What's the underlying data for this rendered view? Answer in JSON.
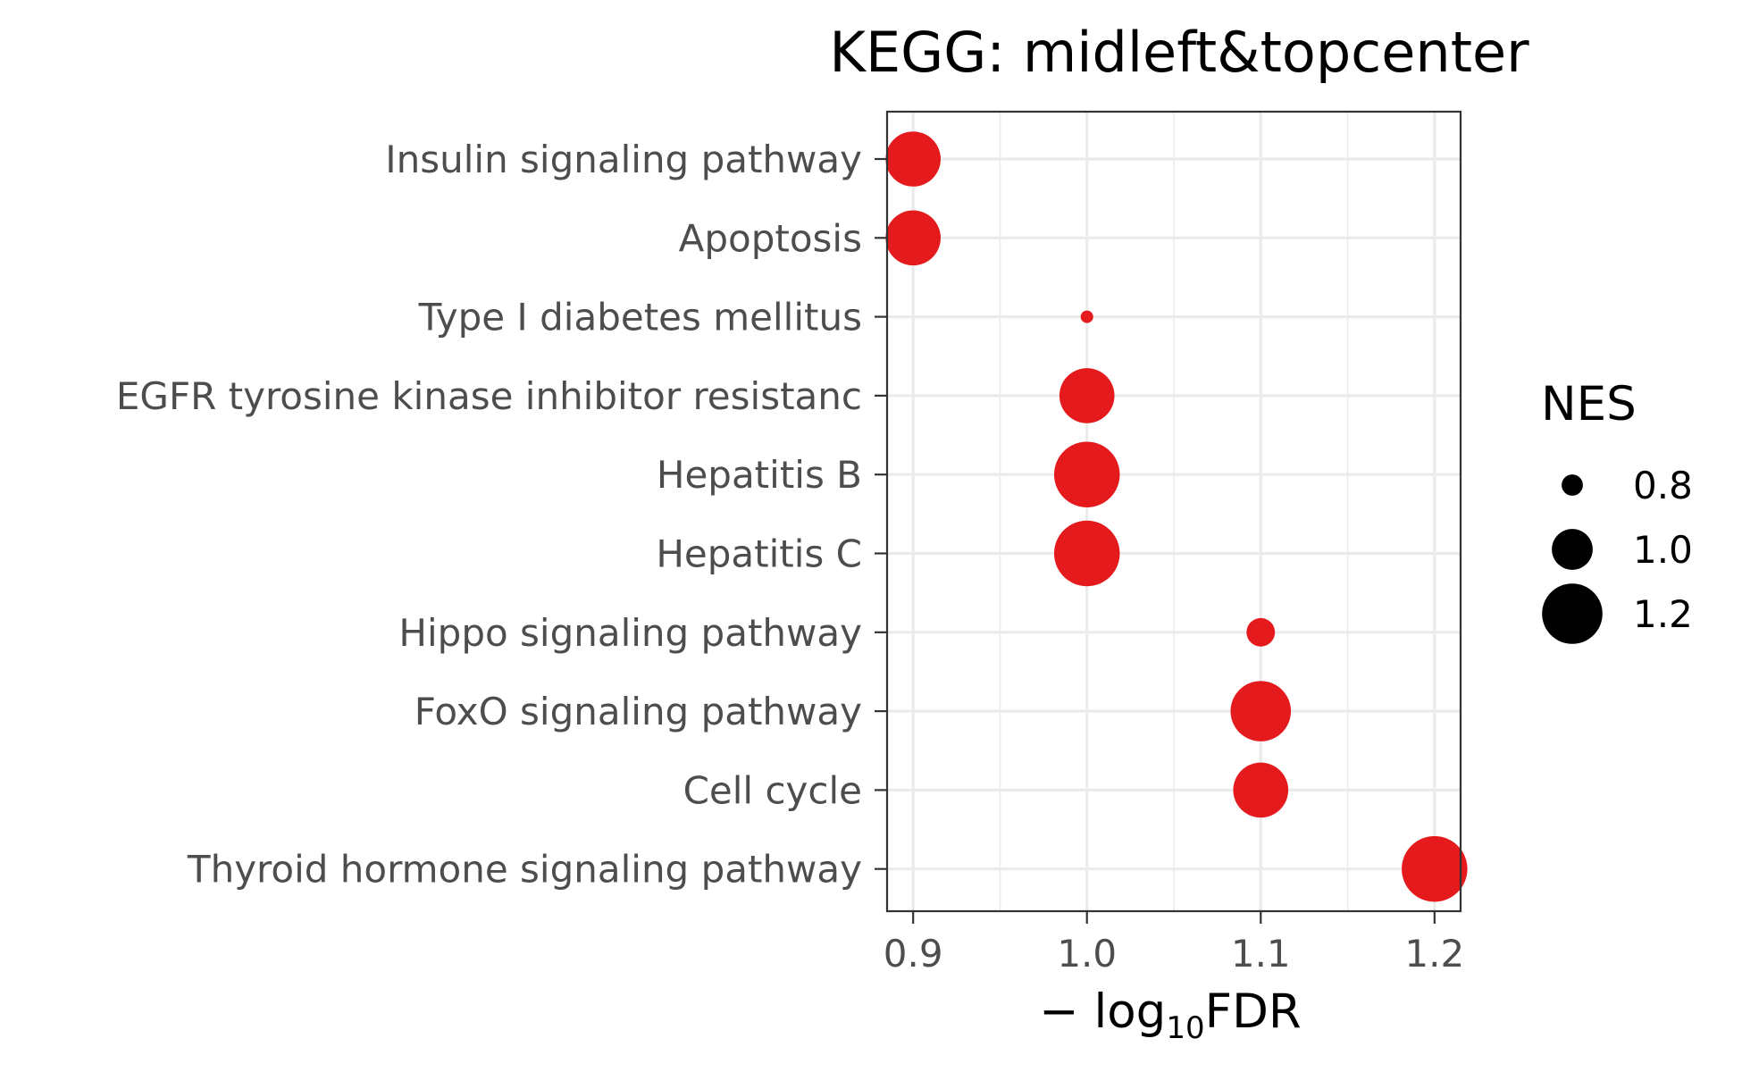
{
  "chart_data": {
    "type": "scatter",
    "title": "KEGG: midleft&topcenter",
    "xlabel_prefix": "− log",
    "xlabel_sub": "10",
    "xlabel_suffix": "FDR",
    "ylabel": "",
    "xlim": [
      0.885,
      1.215
    ],
    "xticks": [
      "0.9",
      "1.0",
      "1.1",
      "1.2"
    ],
    "xtick_values": [
      0.9,
      1.0,
      1.1,
      1.2
    ],
    "grid": true,
    "point_color": "#e41a1c",
    "categories": [
      "Insulin signaling pathway",
      "Apoptosis",
      "Type I diabetes mellitus",
      "EGFR tyrosine kinase inhibitor resistanc",
      "Hepatitis B",
      "Hepatitis C",
      "Hippo signaling pathway",
      "FoxO signaling pathway",
      "Cell cycle",
      "Thyroid hormone signaling pathway"
    ],
    "points": [
      {
        "category": "Insulin signaling pathway",
        "x": 0.9,
        "nes": 1.1
      },
      {
        "category": "Apoptosis",
        "x": 0.9,
        "nes": 1.1
      },
      {
        "category": "Type I diabetes mellitus",
        "x": 1.0,
        "nes": 0.7
      },
      {
        "category": "EGFR tyrosine kinase inhibitor resistanc",
        "x": 1.0,
        "nes": 1.1
      },
      {
        "category": "Hepatitis B",
        "x": 1.0,
        "nes": 1.2
      },
      {
        "category": "Hepatitis C",
        "x": 1.0,
        "nes": 1.2
      },
      {
        "category": "Hippo signaling pathway",
        "x": 1.1,
        "nes": 0.85
      },
      {
        "category": "FoxO signaling pathway",
        "x": 1.1,
        "nes": 1.15
      },
      {
        "category": "Cell cycle",
        "x": 1.1,
        "nes": 1.1
      },
      {
        "category": "Thyroid hormone signaling pathway",
        "x": 1.2,
        "nes": 1.2
      }
    ],
    "legend": {
      "title": "NES",
      "position": "right",
      "entries": [
        {
          "label": "0.8",
          "value": 0.8
        },
        {
          "label": "1.0",
          "value": 1.0
        },
        {
          "label": "1.2",
          "value": 1.2
        }
      ]
    }
  }
}
